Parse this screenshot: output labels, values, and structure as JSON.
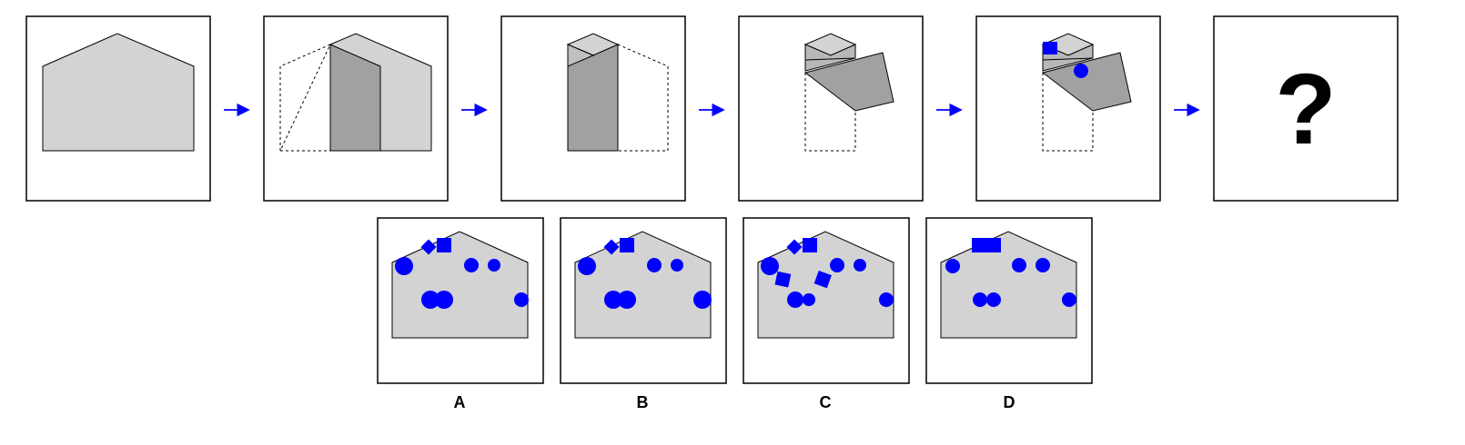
{
  "question_mark": "?",
  "options": [
    {
      "label": "A"
    },
    {
      "label": "B"
    },
    {
      "label": "C"
    },
    {
      "label": "D"
    }
  ],
  "colors": {
    "paper": "#d3d3d3",
    "paper_folded": "#a1a1a1",
    "hole": "#0000ff",
    "arrow": "#0000ff",
    "outline": "#000000"
  }
}
